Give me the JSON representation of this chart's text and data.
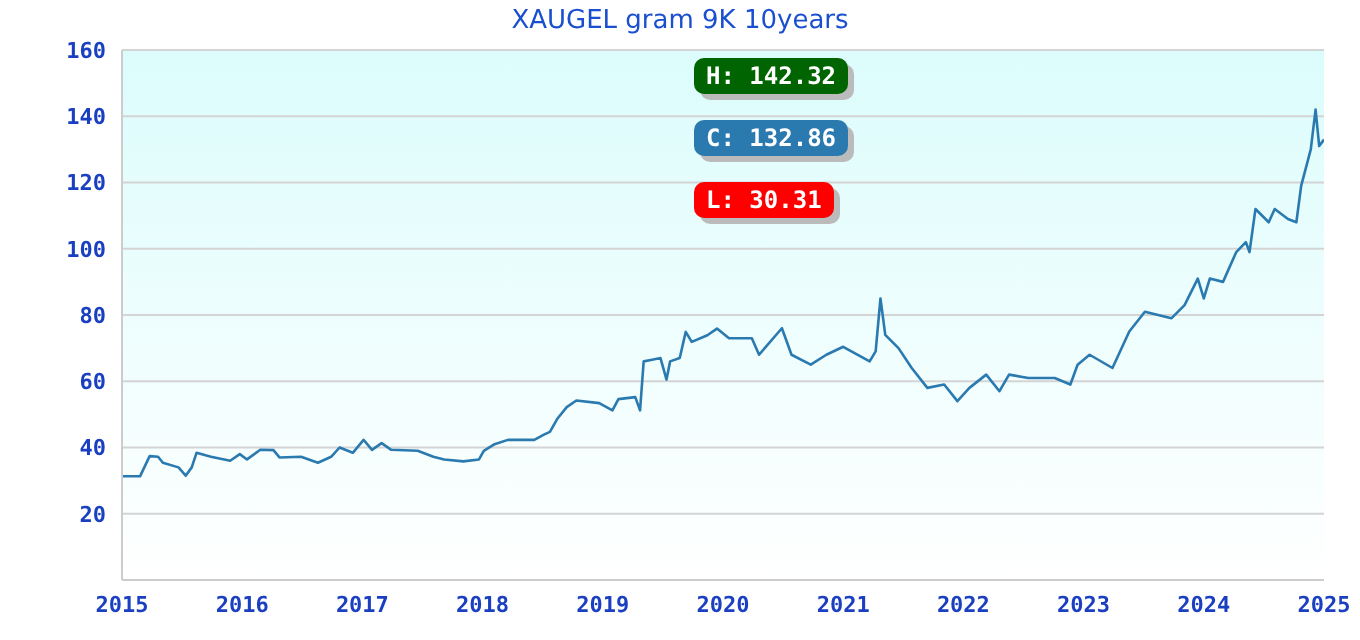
{
  "chart_data": {
    "type": "line",
    "title": "XAUGEL gram 9K 10years",
    "x": [
      2015.0,
      2015.15,
      2015.23,
      2015.3,
      2015.34,
      2015.47,
      2015.53,
      2015.58,
      2015.62,
      2015.74,
      2015.9,
      2015.98,
      2016.04,
      2016.15,
      2016.26,
      2016.31,
      2016.49,
      2016.63,
      2016.74,
      2016.81,
      2016.92,
      2017.01,
      2017.08,
      2017.16,
      2017.24,
      2017.46,
      2017.59,
      2017.68,
      2017.84,
      2017.97,
      2018.01,
      2018.1,
      2018.21,
      2018.43,
      2018.51,
      2018.56,
      2018.62,
      2018.7,
      2018.78,
      2018.97,
      2019.08,
      2019.13,
      2019.27,
      2019.31,
      2019.34,
      2019.4,
      2019.48,
      2019.53,
      2019.56,
      2019.64,
      2019.69,
      2019.74,
      2019.87,
      2019.95,
      2020.05,
      2020.24,
      2020.3,
      2020.49,
      2020.57,
      2020.73,
      2020.86,
      2021.0,
      2021.22,
      2021.27,
      2021.31,
      2021.35,
      2021.46,
      2021.57,
      2021.7,
      2021.84,
      2021.95,
      2022.05,
      2022.19,
      2022.3,
      2022.38,
      2022.54,
      2022.76,
      2022.89,
      2022.95,
      2023.05,
      2023.24,
      2023.38,
      2023.51,
      2023.73,
      2023.84,
      2023.95,
      2024.0,
      2024.05,
      2024.16,
      2024.27,
      2024.35,
      2024.38,
      2024.43,
      2024.54,
      2024.59,
      2024.7,
      2024.77,
      2024.81,
      2024.89,
      2024.93,
      2024.96,
      2025.0
    ],
    "series": [
      {
        "color": "#2a7ab0",
        "values": [
          31.3,
          31.3,
          37.4,
          37.2,
          35.4,
          34,
          31.5,
          34,
          38.4,
          37.2,
          36,
          38,
          36.4,
          39.3,
          39.2,
          37,
          37.2,
          35.4,
          37.2,
          40,
          38.4,
          42.3,
          39.3,
          41.3,
          39.3,
          39,
          37.2,
          36.4,
          35.8,
          36.4,
          39,
          41,
          42.3,
          42.3,
          43.9,
          44.7,
          48.6,
          52.2,
          54.2,
          53.4,
          51.2,
          54.6,
          55.2,
          51.2,
          66,
          66.4,
          67,
          60.5,
          66,
          67,
          74.9,
          71.9,
          73.9,
          75.9,
          73,
          73,
          68,
          76,
          68,
          65,
          68,
          70.4,
          66,
          69,
          85,
          74,
          70,
          64,
          58,
          59,
          54,
          58,
          62,
          57,
          62,
          61,
          61,
          59,
          65,
          68,
          64,
          75,
          81,
          79,
          83,
          91,
          85,
          91,
          90,
          99,
          102,
          99,
          112,
          108,
          112,
          109,
          108,
          119,
          130,
          142,
          131,
          133
        ]
      }
    ],
    "xlim": [
      2015,
      2025
    ],
    "xticks": [
      2015,
      2016,
      2017,
      2018,
      2019,
      2020,
      2021,
      2022,
      2023,
      2024,
      2025
    ],
    "ylim": [
      0,
      160
    ],
    "yticks": [
      20,
      40,
      60,
      80,
      100,
      120,
      140,
      160
    ],
    "grid": "y",
    "marker": "none",
    "line_style": "solid",
    "annotations": [
      "H: 142.32",
      "C: 132.86",
      "L: 30.31"
    ]
  }
}
